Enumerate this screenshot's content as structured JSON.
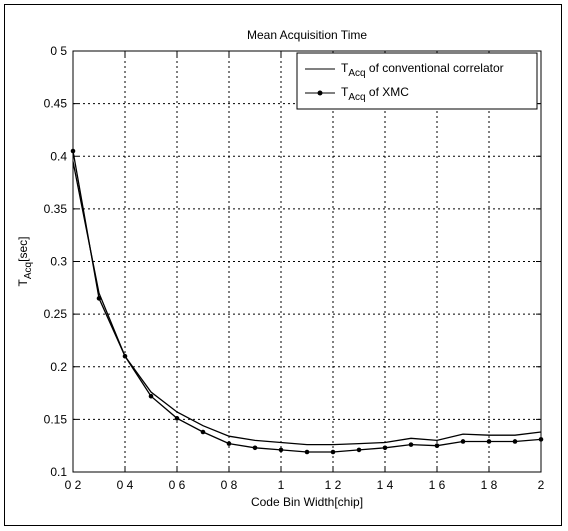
{
  "chart_data": {
    "type": "line",
    "title": "Mean Acquisition Time",
    "xlabel": "Code Bin Width[chip]",
    "ylabel": {
      "main": "T",
      "sub": "Acq",
      "suffix": "[sec]"
    },
    "xlim": [
      0.2,
      2.0
    ],
    "ylim": [
      0.1,
      0.5
    ],
    "grid": true,
    "legend_position": "top-right",
    "x_ticks": [
      0.2,
      0.4,
      0.6,
      0.8,
      1.0,
      1.2,
      1.4,
      1.6,
      1.8,
      2.0
    ],
    "x_tick_labels": [
      "0 2",
      "0 4",
      "0 6",
      "0 8",
      "1",
      "1 2",
      "1 4",
      "1 6",
      "1 8",
      "2"
    ],
    "y_ticks": [
      0.1,
      0.15,
      0.2,
      0.25,
      0.3,
      0.35,
      0.4,
      0.45,
      0.5
    ],
    "y_tick_labels": [
      "0.1",
      "0.15",
      "0.2",
      "0.25",
      "0.3",
      "0.35",
      "0.4",
      "0.45",
      "0 5"
    ],
    "series": [
      {
        "name": {
          "main": "T",
          "sub": "Acq",
          "suffix": " of conventional correlator"
        },
        "color": "#000000",
        "marker": "none",
        "x": [
          0.2,
          0.3,
          0.4,
          0.5,
          0.6,
          0.7,
          0.8,
          0.9,
          1.0,
          1.1,
          1.2,
          1.3,
          1.4,
          1.5,
          1.6,
          1.7,
          1.8,
          1.9,
          2.0
        ],
        "y": [
          0.395,
          0.27,
          0.21,
          0.176,
          0.157,
          0.144,
          0.134,
          0.13,
          0.128,
          0.126,
          0.126,
          0.127,
          0.128,
          0.132,
          0.13,
          0.136,
          0.135,
          0.135,
          0.138
        ]
      },
      {
        "name": {
          "main": "T",
          "sub": "Acq",
          "suffix": " of XMC"
        },
        "color": "#000000",
        "marker": "dot",
        "x": [
          0.2,
          0.3,
          0.4,
          0.5,
          0.6,
          0.7,
          0.8,
          0.9,
          1.0,
          1.1,
          1.2,
          1.3,
          1.4,
          1.5,
          1.6,
          1.7,
          1.8,
          1.9,
          2.0
        ],
        "y": [
          0.405,
          0.265,
          0.21,
          0.172,
          0.151,
          0.138,
          0.127,
          0.123,
          0.121,
          0.119,
          0.119,
          0.121,
          0.123,
          0.126,
          0.125,
          0.129,
          0.129,
          0.129,
          0.131
        ]
      }
    ]
  }
}
